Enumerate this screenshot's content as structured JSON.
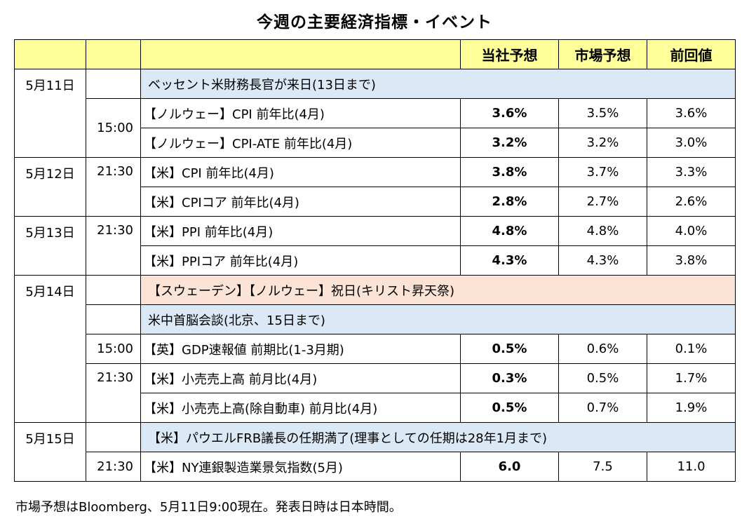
{
  "title": "今週の主要経済指標・イベント",
  "header": {
    "col_date": "",
    "col_time": "",
    "col_item": "",
    "col_ours": "当社予想",
    "col_market": "市場予想",
    "col_prev": "前回値"
  },
  "rows": [
    {
      "date": "5月11日",
      "time": "",
      "item": "ベッセント米財務長官が来日(13日まで)",
      "kind": "event-blue"
    },
    {
      "date": "",
      "time": "15:00",
      "item": "【ノルウェー】CPI 前年比(4月)",
      "ours": "3.6%",
      "market": "3.5%",
      "prev": "3.6%"
    },
    {
      "date": "",
      "time": "",
      "item": "【ノルウェー】CPI-ATE 前年比(4月)",
      "ours": "3.2%",
      "market": "3.2%",
      "prev": "3.0%"
    },
    {
      "date": "5月12日",
      "time": "21:30",
      "item": "【米】CPI 前年比(4月)",
      "ours": "3.8%",
      "market": "3.7%",
      "prev": "3.3%"
    },
    {
      "date": "",
      "time": "",
      "item": "【米】CPIコア 前年比(4月)",
      "ours": "2.8%",
      "market": "2.7%",
      "prev": "2.6%"
    },
    {
      "date": "5月13日",
      "time": "21:30",
      "item": "【米】PPI 前年比(4月)",
      "ours": "4.8%",
      "market": "4.8%",
      "prev": "4.0%"
    },
    {
      "date": "",
      "time": "",
      "item": "【米】PPIコア 前年比(4月)",
      "ours": "4.3%",
      "market": "4.3%",
      "prev": "3.8%"
    },
    {
      "date": "5月14日",
      "time": "",
      "item": "【スウェーデン】【ノルウェー】祝日(キリスト昇天祭)",
      "kind": "event-pink"
    },
    {
      "date": "",
      "time": "",
      "item": "米中首脳会談(北京、15日まで)",
      "kind": "event-blue"
    },
    {
      "date": "",
      "time": "15:00",
      "item": "【英】GDP速報値 前期比(1-3月期)",
      "ours": "0.5%",
      "market": "0.6%",
      "prev": "0.1%"
    },
    {
      "date": "",
      "time": "21:30",
      "item": "【米】小売売上高 前月比(4月)",
      "ours": "0.3%",
      "market": "0.5%",
      "prev": "1.7%"
    },
    {
      "date": "",
      "time": "",
      "item": "【米】小売売上高(除自動車) 前月比(4月)",
      "ours": "0.5%",
      "market": "0.7%",
      "prev": "1.9%"
    },
    {
      "date": "5月15日",
      "time": "",
      "item": "【米】パウエルFRB議長の任期満了(理事としての任期は28年1月まで)",
      "kind": "event-blue"
    },
    {
      "date": "",
      "time": "21:30",
      "item": "【米】NY連銀製造業景気指数(5月)",
      "ours": "6.0",
      "market": "7.5",
      "prev": "11.0"
    }
  ],
  "note": "市場予想はBloomberg、5月11日9:00現在。発表日時は日本時間。",
  "colors": {
    "header_bg": "#ffff99",
    "event_blue_bg": "#dbe8f5",
    "event_pink_bg": "#fbe4d6"
  }
}
